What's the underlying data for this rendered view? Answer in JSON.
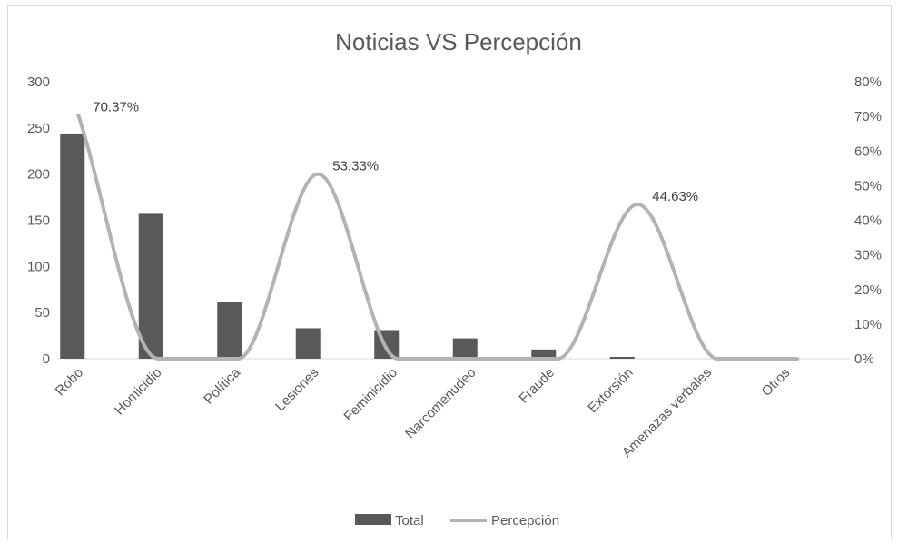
{
  "chart_data": {
    "type": "bar",
    "title": "Noticias VS Percepción",
    "categories": [
      "Robo",
      "Homicidio",
      "Política",
      "Lesiones",
      "Feminicidio",
      "Narcomenudeo",
      "Fraude",
      "Extorsión",
      "Amenazas verbales",
      "Otros"
    ],
    "series": [
      {
        "name": "Total",
        "type": "bar",
        "axis": "left",
        "color": "#595959",
        "values": [
          244,
          157,
          61,
          33,
          31,
          22,
          10,
          2,
          0,
          0
        ]
      },
      {
        "name": "Percepción",
        "type": "line",
        "smooth": true,
        "axis": "right",
        "color": "#b3b3b3",
        "values": [
          0.7037,
          0,
          0,
          0.5333,
          0,
          0,
          0,
          0.4463,
          0,
          0
        ],
        "data_labels": [
          "70.37%",
          "",
          "",
          "53.33%",
          "",
          "",
          "",
          "44.63%",
          "",
          ""
        ]
      }
    ],
    "y_left": {
      "ylim": [
        0,
        300
      ],
      "ticks": [
        "0",
        "50",
        "100",
        "150",
        "200",
        "250",
        "300"
      ]
    },
    "y_right": {
      "ylim": [
        0,
        0.8
      ],
      "ticks": [
        "0%",
        "10%",
        "20%",
        "30%",
        "40%",
        "50%",
        "60%",
        "70%",
        "80%"
      ]
    },
    "grid": false,
    "legend_position": "bottom"
  }
}
